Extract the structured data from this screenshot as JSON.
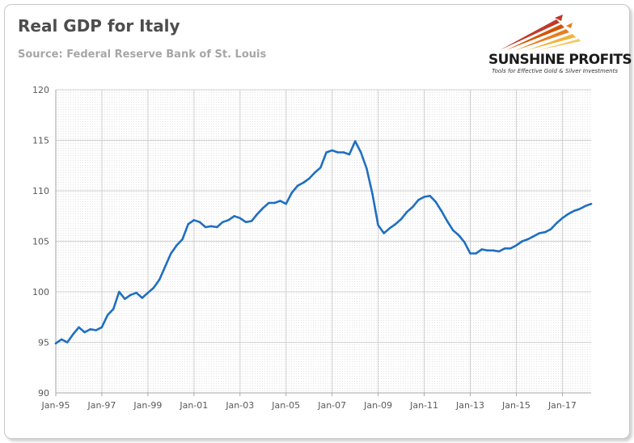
{
  "header": {
    "title": "Real GDP for Italy",
    "subtitle": "Source: Federal Reserve Bank of St. Louis"
  },
  "logo": {
    "name": "SUNSHINE PROFITS",
    "tagline": "Tools for Effective Gold & Silver Investments",
    "colors": {
      "rays": [
        "#c0392b",
        "#e67e22",
        "#f0b43c"
      ],
      "text": "#1b1b1b"
    }
  },
  "colors": {
    "line": "#1f6fc0",
    "grid": "#d0d0d0",
    "axis": "#a6a6a6"
  },
  "chart_data": {
    "type": "line",
    "title": "Real GDP for Italy",
    "subtitle": "Source: Federal Reserve Bank of St. Louis",
    "xlabel": "",
    "ylabel": "",
    "ylim": [
      90,
      120
    ],
    "y_ticks": [
      90,
      95,
      100,
      105,
      110,
      115,
      120
    ],
    "x_tick_labels": [
      "Jan-95",
      "Jan-97",
      "Jan-99",
      "Jan-01",
      "Jan-03",
      "Jan-05",
      "Jan-07",
      "Jan-09",
      "Jan-11",
      "Jan-13",
      "Jan-15",
      "Jan-17"
    ],
    "x_range": [
      "1995-01",
      "2018-04"
    ],
    "grid": true,
    "series": [
      {
        "color": "#1f6fc0",
        "x": [
          "1995-01",
          "1995-04",
          "1995-07",
          "1995-10",
          "1996-01",
          "1996-04",
          "1996-07",
          "1996-10",
          "1997-01",
          "1997-04",
          "1997-07",
          "1997-10",
          "1998-01",
          "1998-04",
          "1998-07",
          "1998-10",
          "1999-01",
          "1999-04",
          "1999-07",
          "1999-10",
          "2000-01",
          "2000-04",
          "2000-07",
          "2000-10",
          "2001-01",
          "2001-04",
          "2001-07",
          "2001-10",
          "2002-01",
          "2002-04",
          "2002-07",
          "2002-10",
          "2003-01",
          "2003-04",
          "2003-07",
          "2003-10",
          "2004-01",
          "2004-04",
          "2004-07",
          "2004-10",
          "2005-01",
          "2005-04",
          "2005-07",
          "2005-10",
          "2006-01",
          "2006-04",
          "2006-07",
          "2006-10",
          "2007-01",
          "2007-04",
          "2007-07",
          "2007-10",
          "2008-01",
          "2008-04",
          "2008-07",
          "2008-10",
          "2009-01",
          "2009-04",
          "2009-07",
          "2009-10",
          "2010-01",
          "2010-04",
          "2010-07",
          "2010-10",
          "2011-01",
          "2011-04",
          "2011-07",
          "2011-10",
          "2012-01",
          "2012-04",
          "2012-07",
          "2012-10",
          "2013-01",
          "2013-04",
          "2013-07",
          "2013-10",
          "2014-01",
          "2014-04",
          "2014-07",
          "2014-10",
          "2015-01",
          "2015-04",
          "2015-07",
          "2015-10",
          "2016-01",
          "2016-04",
          "2016-07",
          "2016-10",
          "2017-01",
          "2017-04",
          "2017-07",
          "2017-10",
          "2018-01",
          "2018-04"
        ],
        "values": [
          94.9,
          95.3,
          95.0,
          95.8,
          96.5,
          96.0,
          96.3,
          96.2,
          96.5,
          97.7,
          98.3,
          100.0,
          99.3,
          99.7,
          99.9,
          99.4,
          99.9,
          100.4,
          101.2,
          102.5,
          103.8,
          104.6,
          105.2,
          106.7,
          107.1,
          106.9,
          106.4,
          106.5,
          106.4,
          106.9,
          107.1,
          107.5,
          107.3,
          106.9,
          107.0,
          107.7,
          108.3,
          108.8,
          108.8,
          109.0,
          108.7,
          109.8,
          110.5,
          110.8,
          111.2,
          111.8,
          112.3,
          113.8,
          114.0,
          113.8,
          113.8,
          113.6,
          114.9,
          113.8,
          112.2,
          109.7,
          106.6,
          105.8,
          106.3,
          106.7,
          107.2,
          107.9,
          108.4,
          109.1,
          109.4,
          109.5,
          108.9,
          108.0,
          107.0,
          106.1,
          105.6,
          104.9,
          103.8,
          103.8,
          104.2,
          104.1,
          104.1,
          104.0,
          104.3,
          104.3,
          104.6,
          105.0,
          105.2,
          105.5,
          105.8,
          105.9,
          106.2,
          106.8,
          107.3,
          107.7,
          108.0,
          108.2,
          108.5,
          108.7
        ]
      }
    ]
  }
}
